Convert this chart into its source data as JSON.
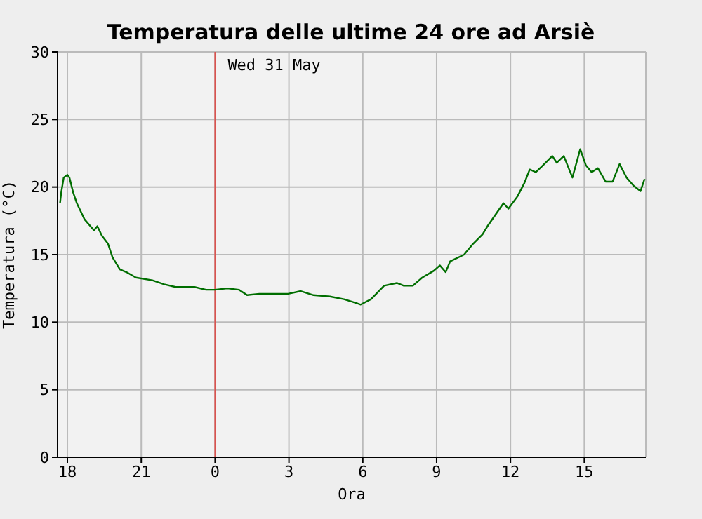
{
  "chart_data": {
    "type": "line",
    "title": "Temperatura delle ultime 24 ore ad Arsiè",
    "xlabel": "Ora",
    "ylabel": "Temperatura (°C)",
    "x": [
      "--05-30T17:42",
      "--05-30T17:45",
      "--05-30T17:51",
      "--05-30T18:00",
      "--05-30T18:05",
      "--05-30T18:14",
      "--05-30T18:23",
      "--05-30T18:42",
      "--05-30T18:59",
      "--05-30T19:05",
      "--05-30T19:13",
      "--05-30T19:24",
      "--05-30T19:39",
      "--05-30T19:50",
      "--05-30T20:08",
      "--05-30T20:24",
      "--05-30T20:47",
      "--05-30T21:27",
      "--05-30T21:56",
      "--05-30T22:24",
      "--05-30T23:10",
      "--05-30T23:38",
      "--05-31T00:00",
      "--05-31T00:30",
      "--05-31T00:58",
      "--05-31T01:18",
      "--05-31T01:48",
      "--05-31T02:58",
      "--05-31T03:29",
      "--05-31T04:00",
      "--05-31T04:40",
      "--05-31T05:14",
      "--05-31T05:35",
      "--05-31T05:55",
      "--05-31T06:20",
      "--05-31T06:52",
      "--05-31T07:23",
      "--05-31T07:40",
      "--05-31T08:02",
      "--05-31T08:25",
      "--05-31T08:53",
      "--05-31T09:08",
      "--05-31T09:22",
      "--05-31T09:33",
      "--05-31T10:07",
      "--05-31T10:29",
      "--05-31T10:52",
      "--05-31T11:04",
      "--05-31T11:20",
      "--05-31T11:43",
      "--05-31T11:55",
      "--05-31T12:17",
      "--05-31T12:34",
      "--05-31T12:47",
      "--05-31T13:02",
      "--05-31T13:19",
      "--05-31T13:42",
      "--05-31T13:53",
      "--05-31T14:10",
      "--05-31T14:31",
      "--05-31T14:50",
      "--05-31T15:04",
      "--05-31T15:18",
      "--05-31T15:33",
      "--05-31T15:52",
      "--05-31T16:09",
      "--05-31T16:26",
      "--05-31T16:43",
      "--05-31T17:00",
      "--05-31T17:17",
      "--05-31T17:27"
    ],
    "series": [
      {
        "color": "#006e00",
        "values": [
          18.8,
          19.6,
          20.7,
          20.9,
          20.7,
          19.6,
          18.8,
          17.6,
          17.0,
          16.8,
          17.1,
          16.4,
          15.8,
          14.8,
          13.9,
          13.7,
          13.3,
          13.1,
          12.8,
          12.6,
          12.6,
          12.4,
          12.4,
          12.5,
          12.4,
          12.0,
          12.1,
          12.1,
          12.3,
          12.0,
          11.9,
          11.7,
          11.5,
          11.3,
          11.7,
          12.7,
          12.9,
          12.7,
          12.7,
          13.3,
          13.8,
          14.2,
          13.7,
          14.5,
          15.0,
          15.8,
          16.5,
          17.1,
          17.8,
          18.8,
          18.4,
          19.3,
          20.3,
          21.3,
          21.1,
          21.6,
          22.3,
          21.8,
          22.3,
          20.7,
          22.8,
          21.6,
          21.1,
          21.4,
          20.4,
          20.4,
          21.7,
          20.7,
          20.1,
          19.7,
          20.6
        ]
      }
    ],
    "xlim": [
      "--05-30T17:36",
      "--05-31T17:30"
    ],
    "xticks": [
      {
        "value": "--05-30T18:00",
        "label": "18"
      },
      {
        "value": "--05-30T21:00",
        "label": "21"
      },
      {
        "value": "--05-31T00:00",
        "label": "0"
      },
      {
        "value": "--05-31T03:00",
        "label": "3"
      },
      {
        "value": "--05-31T06:00",
        "label": "6"
      },
      {
        "value": "--05-31T09:00",
        "label": "9"
      },
      {
        "value": "--05-31T12:00",
        "label": "12"
      },
      {
        "value": "--05-31T15:00",
        "label": "15"
      }
    ],
    "ylim": [
      0,
      30
    ],
    "yticks": [
      0,
      5,
      10,
      15,
      20,
      25,
      30
    ],
    "ref_lines": [
      {
        "axis": "x",
        "value": "--05-31T00:00",
        "label": "Wed 31 May",
        "color": "#d9534f"
      }
    ],
    "grid": true,
    "marker": "none",
    "line_style": "solid"
  }
}
